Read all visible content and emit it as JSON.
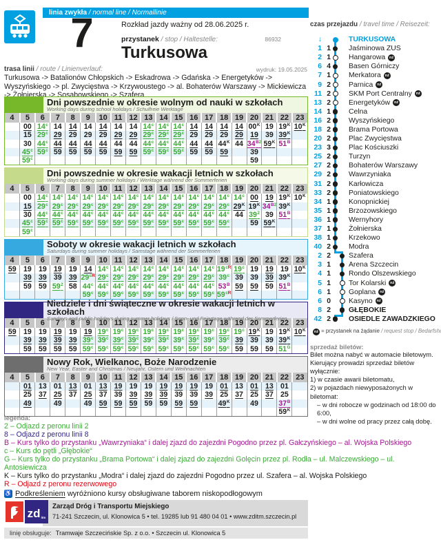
{
  "colors": {
    "brand": "#00a0e1",
    "sup": {
      "c": "#3aaa35",
      "G": "#3aaa35",
      "2": "#3aaa35",
      "8": "#312783",
      "B": "#a3198f",
      "K": "#1d1d1b",
      "R": "#e30613"
    }
  },
  "header": {
    "badge_bold": "linia zwykła",
    "badge_rest": " / normal line / Normallinie",
    "line_number": "7",
    "valid": "Rozkład jazdy ważny od 28.06.2025 r.",
    "stop_label": "przystanek",
    "stop_label_i": " / stop / Haltestelle:",
    "stop_code": "86932",
    "stop_name": "Turkusowa",
    "print_date": "wydruk: 19.05.2025",
    "route_label": "trasa linii",
    "route_label_i": " / route / Linienverlauf:",
    "route": "Turkusowa -> Batalionów Chłopskich -> Eskadrowa -> Gdańska -> Energetyków -> Wyszyńskiego -> pl. Zwycięstwa -> Krzywoustego -> al. Bohaterów Warszawy -> Mickiewicza -> Żołnierska -> Sosabowskiego -> Szafera"
  },
  "hours": [
    "4",
    "5",
    "6",
    "7",
    "8",
    "9",
    "10",
    "11",
    "12",
    "13",
    "14",
    "15",
    "16",
    "17",
    "18",
    "19",
    "20",
    "21",
    "22",
    "23"
  ],
  "tables": [
    {
      "title": "Dni powszednie w okresie wolnym od nauki w szkołach",
      "subtitle": "Working days during school holidays / Schulfreie Werktage",
      "color": "#76b82a",
      "tint": "#eff6e2",
      "shade": 1,
      "cells": [
        [],
        [
          "00*",
          "15",
          "30",
          "45c*",
          "59c"
        ],
        [
          "14c*",
          "29c",
          "44c*",
          "59c"
        ],
        [
          "14",
          "29*",
          "44*",
          "59"
        ],
        [
          "14*",
          "29",
          "44*",
          "59"
        ],
        [
          "14",
          "29",
          "44*",
          "59"
        ],
        [
          "14*",
          "29",
          "44*",
          "59"
        ],
        [
          "14",
          "29*",
          "44",
          "59*"
        ],
        [
          "14",
          "29*",
          "44",
          "59*"
        ],
        [
          "14c*",
          "29c*",
          "44c*",
          "59c"
        ],
        [
          "14c*",
          "29c*",
          "44c*",
          "59c"
        ],
        [
          "14c*",
          "29c*",
          "44c*",
          "59c"
        ],
        [
          "14*",
          "29",
          "44*",
          "59"
        ],
        [
          "14*",
          "29",
          "44*",
          "59"
        ],
        [
          "14*",
          "29",
          "44K",
          "59*"
        ],
        [
          "14*",
          "29*",
          "44"
        ],
        [
          "00K",
          "19*",
          "34B2*",
          "39",
          "59"
        ],
        [
          "19",
          "39",
          "59K*"
        ],
        [
          "19K",
          "39K*",
          "51B"
        ],
        [
          "10K*"
        ]
      ]
    },
    {
      "title": "Dni powszednie w okresie wakacji letnich w szkołach",
      "subtitle": "Working days during summer holidays / Werktage während der Sommerferien",
      "color": "#c5da8b",
      "tint": "#f4f9e8",
      "shade": 1,
      "cells": [
        [],
        [
          "00",
          "15*",
          "30",
          "45c*",
          "59c"
        ],
        [
          "14c*",
          "29c",
          "44c*",
          "59c*"
        ],
        [
          "14c",
          "29c*",
          "44c*",
          "59c*"
        ],
        [
          "14c",
          "29c*",
          "44c",
          "59c*"
        ],
        [
          "14c",
          "29c*",
          "44c",
          "59c*"
        ],
        [
          "14c",
          "29c*",
          "44c",
          "59c*"
        ],
        [
          "14c",
          "29c*",
          "44c",
          "59c*"
        ],
        [
          "14c",
          "29c*",
          "44c",
          "59c*"
        ],
        [
          "14c",
          "29c*",
          "44c",
          "59c*"
        ],
        [
          "14c",
          "29c*",
          "44c",
          "59c*"
        ],
        [
          "14c",
          "29c*",
          "44c",
          "59c*"
        ],
        [
          "14c",
          "29c*",
          "44c",
          "59c*"
        ],
        [
          "14c",
          "29c*",
          "44c",
          "59c*"
        ],
        [
          "14c",
          "29c*",
          "44c",
          "59c*"
        ],
        [
          "14c",
          "29K*",
          "44"
        ],
        [
          "00*",
          "19K",
          "392*",
          "59"
        ],
        [
          "19*",
          "34B2",
          "39",
          "59K*"
        ],
        [
          "19K",
          "39K",
          "51B*"
        ],
        [
          "10K"
        ]
      ]
    },
    {
      "title": "Soboty w okresie wakacji letnich w szkołach",
      "subtitle": "Saturdays during summer holidays / Samstage während der Sommerferien",
      "color": "#36a9e1",
      "tint": "#e6f4fc",
      "shade": 1,
      "cells": [
        [
          "59*"
        ],
        [
          "19",
          "39*",
          "59"
        ],
        [
          "19",
          "39*",
          "59"
        ],
        [
          "19*",
          "39",
          "592*"
        ],
        [
          "19",
          "39*",
          "58"
        ],
        [
          "14*",
          "29cR",
          "44c",
          "59c"
        ],
        [
          "14c",
          "29c*",
          "44c",
          "59c"
        ],
        [
          "14c",
          "29c*",
          "44c",
          "59c"
        ],
        [
          "14c",
          "29c*",
          "44c",
          "59c"
        ],
        [
          "14c",
          "29c*",
          "44c",
          "59c"
        ],
        [
          "14c",
          "29c*",
          "44c",
          "59c"
        ],
        [
          "14c",
          "29c*",
          "44c",
          "59c"
        ],
        [
          "14c",
          "29c*",
          "44c",
          "59c"
        ],
        [
          "14c",
          "29c*",
          "44c",
          "59c"
        ],
        [
          "19cR",
          "39c",
          "53B",
          "59cR"
        ],
        [
          "19c*",
          "39",
          "59*"
        ],
        [
          "19",
          "39",
          "59*"
        ],
        [
          "19*",
          "39*",
          "59"
        ],
        [
          "19",
          "39K",
          "51B*"
        ],
        [
          "10K*"
        ]
      ]
    },
    {
      "title": "Niedziele i dni świąteczne w okresie wakacji letnich w szkołach",
      "subtitle": "Sundays and public holidays during summer holidays / Sonn- und Feiertage während der Sommerferien",
      "color": "#312783",
      "tint": "#e9e9f5",
      "shade": 1,
      "cells": [
        [
          "59*"
        ],
        [
          "19",
          "39*",
          "59"
        ],
        [
          "19",
          "39*",
          "59"
        ],
        [
          "19*",
          "39*",
          "59"
        ],
        [
          "19",
          "39*",
          "59"
        ],
        [
          "19*",
          "39c*",
          "59c"
        ],
        [
          "19c*",
          "39c",
          "59c"
        ],
        [
          "19c",
          "39c*",
          "59c"
        ],
        [
          "19c*",
          "39c*",
          "59c"
        ],
        [
          "19c",
          "39c",
          "59c"
        ],
        [
          "19c*",
          "39c",
          "59c"
        ],
        [
          "19c",
          "39c",
          "59c"
        ],
        [
          "19c*",
          "39c*",
          "59c"
        ],
        [
          "19c",
          "39c",
          "59c"
        ],
        [
          "19c*",
          "39c",
          "59c"
        ],
        [
          "19c",
          "39*",
          "59"
        ],
        [
          "19K*",
          "39",
          "59"
        ],
        [
          "19",
          "39",
          "59"
        ],
        [
          "19K",
          "39K*",
          "51G"
        ],
        [
          "10K*"
        ]
      ]
    },
    {
      "title": "Nowy Rok, Wielkanoc, Boże Narodzenie",
      "subtitle": "New Year, Easter and Christmas / Neujahr, Ostern und Weihnachten",
      "color": "#6e6e6e",
      "tint": "#ececec",
      "shade": 0,
      "cells": [
        [],
        [
          "01*",
          "25",
          "49*"
        ],
        [
          "13",
          "37*"
        ],
        [
          "01",
          "25*",
          "49"
        ],
        [
          "13*",
          "37"
        ],
        [
          "01",
          "25*",
          "49"
        ],
        [
          "13*",
          "37",
          "59*"
        ],
        [
          "19*",
          "39",
          "59*"
        ],
        [
          "19",
          "39*",
          "59*"
        ],
        [
          "19",
          "39*",
          "59"
        ],
        [
          "19*",
          "39*",
          "59"
        ],
        [
          "19*",
          "39",
          "59*"
        ],
        [
          "19*",
          "39",
          "59*"
        ],
        [
          "19",
          "39*"
        ],
        [
          "01*",
          "25",
          "49K*"
        ],
        [
          "13",
          "37*"
        ],
        [
          "01*",
          "25",
          "49"
        ],
        [
          "13*",
          "37*"
        ],
        [
          "01",
          "25",
          "37B*",
          "59K"
        ],
        []
      ]
    }
  ],
  "travel": {
    "label": "czas przejazdu",
    "label_i": " / travel time / Reisezeit:",
    "stops": [
      {
        "min": "",
        "seg": "",
        "arrow": "↓",
        "dot": "start",
        "name": "TURKUSOWA",
        "cyan": true
      },
      {
        "min": "1",
        "seg": "1",
        "dot": "f",
        "name": "Jaśminowa ZUS"
      },
      {
        "min": "2",
        "seg": "1",
        "dot": "h",
        "name": "Hangarowa",
        "nz": true
      },
      {
        "min": "6",
        "seg": "4",
        "dot": "f",
        "name": "Basen Górniczy"
      },
      {
        "min": "7",
        "seg": "1",
        "dot": "h",
        "name": "Merkatora",
        "nz": true
      },
      {
        "min": "9",
        "seg": "2",
        "dot": "h",
        "name": "Parnica",
        "nz": true
      },
      {
        "min": "11",
        "seg": "2",
        "dot": "h",
        "name": "SKM Port Centralny",
        "nz": true
      },
      {
        "min": "13",
        "seg": "2",
        "dot": "h",
        "name": "Energetyków",
        "nz": true
      },
      {
        "min": "14",
        "seg": "1",
        "dot": "f",
        "name": "Celna"
      },
      {
        "min": "16",
        "seg": "2",
        "dot": "f",
        "name": "Wyszyńskiego"
      },
      {
        "min": "18",
        "seg": "2",
        "dot": "f",
        "name": "Brama Portowa"
      },
      {
        "min": "20",
        "seg": "2",
        "dot": "f",
        "name": "Plac Zwycięstwa"
      },
      {
        "min": "23",
        "seg": "3",
        "dot": "f",
        "name": "Plac Kościuszki"
      },
      {
        "min": "25",
        "seg": "2",
        "dot": "f",
        "name": "Turzyn"
      },
      {
        "min": "27",
        "seg": "2",
        "dot": "f",
        "name": "Bohaterów Warszawy"
      },
      {
        "min": "29",
        "seg": "2",
        "dot": "f",
        "name": "Wawrzyniaka"
      },
      {
        "min": "31",
        "seg": "2",
        "dot": "f",
        "name": "Karłowicza"
      },
      {
        "min": "33",
        "seg": "2",
        "dot": "f",
        "name": "Poniatowskiego"
      },
      {
        "min": "34",
        "seg": "1",
        "dot": "f",
        "name": "Konopnickiej"
      },
      {
        "min": "35",
        "seg": "1",
        "dot": "f",
        "name": "Brzozowskiego"
      },
      {
        "min": "36",
        "seg": "1",
        "dot": "f",
        "name": "Wernyhory"
      },
      {
        "min": "37",
        "seg": "1",
        "dot": "f",
        "name": "Żołnierska"
      },
      {
        "min": "38",
        "seg": "1",
        "dot": "f",
        "name": "Krzekowo"
      },
      {
        "min": "40",
        "seg": "2",
        "dot": "f",
        "name": "Modra"
      },
      {
        "min": "2",
        "seg": "2",
        "dot": "f",
        "name": "Szafera",
        "branch": true
      },
      {
        "min": "3",
        "seg": "1",
        "dot": "f",
        "name": "Arena Szczecin",
        "branch": true
      },
      {
        "min": "4",
        "seg": "1",
        "dot": "f",
        "name": "Rondo Olszewskiego",
        "branch": true
      },
      {
        "min": "5",
        "seg": "1",
        "dot": "h",
        "name": "Tor Kolarski",
        "nz": true,
        "branch": true
      },
      {
        "min": "6",
        "seg": "1",
        "dot": "h",
        "name": "Goplana",
        "nz": true,
        "branch": true
      },
      {
        "min": "6",
        "seg": "0",
        "dot": "h",
        "name": "Kasyno",
        "nz": true,
        "branch": true
      },
      {
        "min": "8",
        "seg": "2",
        "dot": "f",
        "name": "GŁĘBOKIE",
        "bold": true,
        "branch": true
      },
      {
        "min": "42",
        "seg": "2",
        "dot": "f",
        "name": "OSIEDLE ZAWADZKIEGO",
        "bold": true
      }
    ],
    "nz_note": " = przystanek na żądanie ",
    "nz_note_i": "/ request stop / Bedarfshaltestelle",
    "nz_badge": "nż"
  },
  "tickets": {
    "title": "sprzedaż biletów:",
    "lines": [
      "Bilet można nabyć w automacie biletowym.",
      "Kierujący prowadzi sprzedaż biletów wyłącznie:",
      "1) w czasie awarii biletomatu,",
      "2) w pojazdach niewyposażonych w biletomat:",
      "– w dni robocze w godzinach od 18:00 do 6:00,",
      "– w dni wolne od pracy przez całą dobę."
    ]
  },
  "legend": {
    "title": "legenda:",
    "items": [
      {
        "text": "2 – Odjazd z peronu linii 2",
        "color": "#3aaa35"
      },
      {
        "text": "8 – Odjazd z peronu linii 8",
        "color": "#312783"
      },
      {
        "text": "B – Kurs tylko do przystanku „Wawrzyniaka“ i dalej zjazd do zajezdni Pogodno przez pl. Gałczyńskiego – al. Wojska Polskiego",
        "color": "#a3198f"
      },
      {
        "text": "c – Kurs do pętli „Głębokie“",
        "color": "#3aaa35"
      },
      {
        "text": "G – Kurs tylko do przystanku „Brama Portowa“ i dalej zjazd do zajezdni Golęcin przez pl. Rodła – ul. Malczewskiego – ul. Antosiewicza",
        "color": "#3aaa35"
      },
      {
        "text": "K – Kurs tylko do przystanku „Modra“ i dalej zjazd do zajezdni Pogodno przez ul. Szafera – al. Wojska Polskiego",
        "color": "#1d1d1b"
      },
      {
        "text": "R – Odjazd z peronu rezerwowego",
        "color": "#e30613"
      }
    ],
    "lowfloor_u": "Podkreśleniem",
    "lowfloor_rest": " wyróżniono kursy obsługiwane taborem niskopodłogowym",
    "wheelchair": "♿"
  },
  "footer": {
    "logo_zd": "zd",
    "logo_zd_small": "itm",
    "org": "Zarząd Dróg i Transportu Miejskiego",
    "addr": "71-241 Szczecin, ul. Klonowica 5 • tel. 19285 lub 91 480 04 01 • www.zditm.szczecin.pl",
    "op_label": "linię obsługuje:",
    "op": "Tramwaje Szczecińskie Sp. z o.o. • Szczecin ul. Klonowica 5"
  }
}
